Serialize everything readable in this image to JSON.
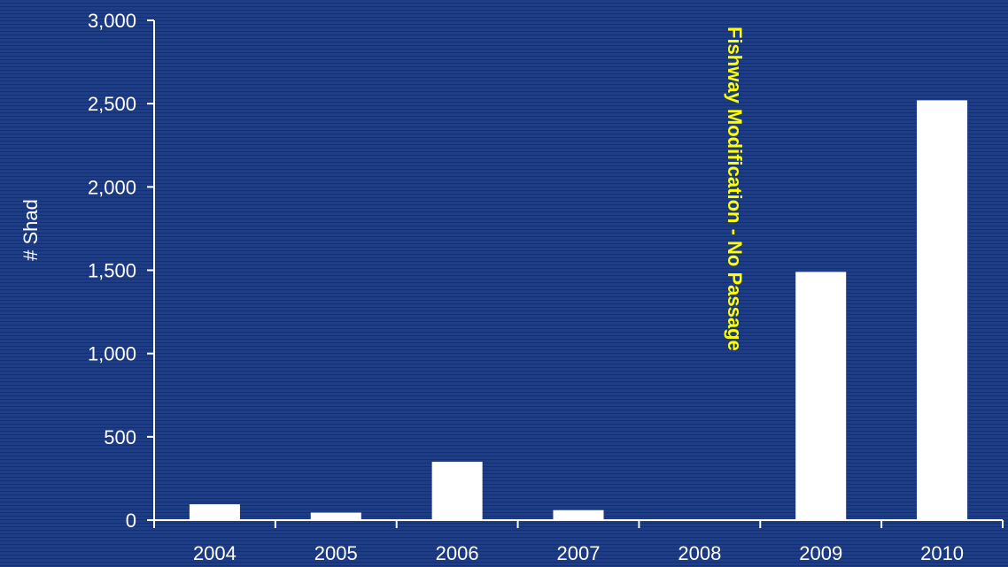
{
  "chart_data": {
    "type": "bar",
    "categories": [
      "2004",
      "2005",
      "2006",
      "2007",
      "2008",
      "2009",
      "2010"
    ],
    "values": [
      95,
      45,
      350,
      60,
      0,
      1490,
      2520
    ],
    "title": "",
    "xlabel": "",
    "ylabel": "# Shad",
    "ylim": [
      0,
      3000
    ],
    "yticks": [
      0,
      500,
      1000,
      1500,
      2000,
      2500,
      3000
    ],
    "ytick_labels": [
      "0",
      "500",
      "1,000",
      "1,500",
      "2,000",
      "2,500",
      "3,000"
    ],
    "grid": false,
    "legend": "none",
    "annotations": [
      {
        "text": "Fishway Modification - No Passage",
        "category": "2008",
        "orientation": "vertical"
      }
    ],
    "colors": {
      "bar": "#ffffff",
      "axis": "#ffffff",
      "text": "#ffffff",
      "annotation": "#ffff00",
      "background": "#1f3d84"
    }
  }
}
